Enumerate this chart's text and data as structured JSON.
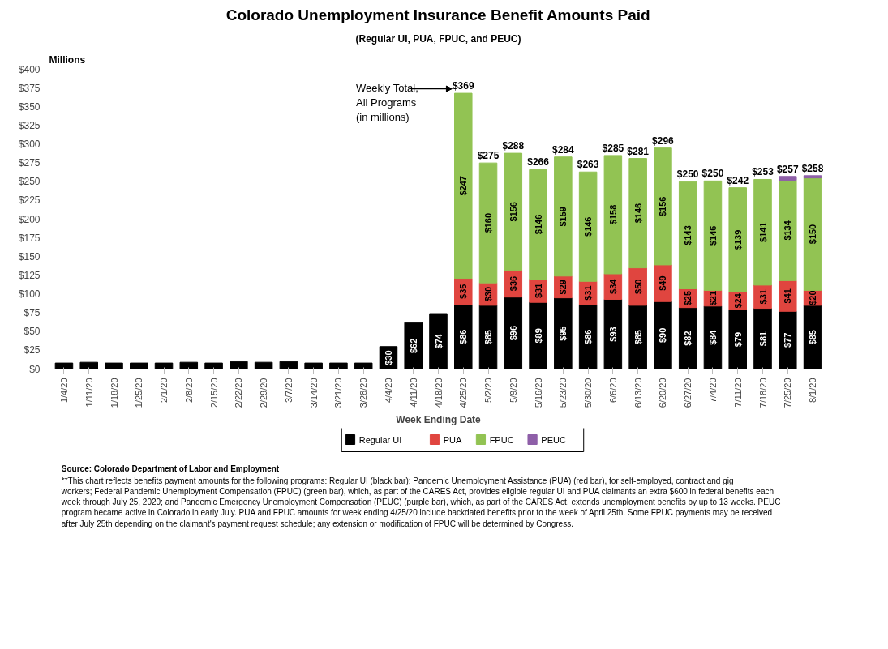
{
  "chart_data": {
    "type": "bar",
    "stacked": true,
    "title": "Colorado Unemployment Insurance Benefit Amounts Paid",
    "subtitle": "(Regular UI, PUA, FPUC, and PEUC)",
    "ylabel": "Millions",
    "xlabel": "Week Ending Date",
    "categories": [
      "1/4/20",
      "1/11/20",
      "1/18/20",
      "1/25/20",
      "2/1/20",
      "2/8/20",
      "2/15/20",
      "2/22/20",
      "2/29/20",
      "3/7/20",
      "3/14/20",
      "3/21/20",
      "3/28/20",
      "4/4/20",
      "4/11/20",
      "4/18/20",
      "4/25/20",
      "5/2/20",
      "5/9/20",
      "5/16/20",
      "5/23/20",
      "5/30/20",
      "6/6/20",
      "6/13/20",
      "6/20/20",
      "6/27/20",
      "7/4/20",
      "7/11/20",
      "7/18/20",
      "7/25/20",
      "8/1/20"
    ],
    "series": [
      {
        "name": "Regular UI",
        "color": "#000000",
        "values": [
          8,
          9,
          8,
          8,
          8,
          9,
          8,
          10,
          9,
          10,
          8,
          8,
          8,
          30,
          62,
          74,
          86,
          85,
          96,
          89,
          95,
          86,
          93,
          85,
          90,
          82,
          84,
          79,
          81,
          77,
          85
        ],
        "value_labels": [
          null,
          null,
          null,
          null,
          null,
          null,
          null,
          null,
          null,
          null,
          null,
          null,
          null,
          "$30",
          "$62",
          "$74",
          "$86",
          "$85",
          "$96",
          "$89",
          "$95",
          "$86",
          "$93",
          "$85",
          "$90",
          "$82",
          "$84",
          "$79",
          "$81",
          "$77",
          "$85"
        ]
      },
      {
        "name": "PUA",
        "color": "#e0453f",
        "values": [
          null,
          null,
          null,
          null,
          null,
          null,
          null,
          null,
          null,
          null,
          null,
          null,
          null,
          null,
          null,
          null,
          35,
          30,
          36,
          31,
          29,
          31,
          34,
          50,
          49,
          25,
          21,
          24,
          31,
          41,
          20
        ],
        "value_labels": [
          null,
          null,
          null,
          null,
          null,
          null,
          null,
          null,
          null,
          null,
          null,
          null,
          null,
          null,
          null,
          null,
          "$35",
          "$30",
          "$36",
          "$31",
          "$29",
          "$31",
          "$34",
          "$50",
          "$49",
          "$25",
          "$21",
          "$24",
          "$31",
          "$41",
          "$20"
        ]
      },
      {
        "name": "FPUC",
        "color": "#92c353",
        "values": [
          null,
          null,
          null,
          null,
          null,
          null,
          null,
          null,
          null,
          null,
          null,
          null,
          null,
          null,
          null,
          null,
          247,
          160,
          156,
          146,
          159,
          146,
          158,
          146,
          156,
          143,
          146,
          139,
          141,
          134,
          150
        ],
        "value_labels": [
          null,
          null,
          null,
          null,
          null,
          null,
          null,
          null,
          null,
          null,
          null,
          null,
          null,
          null,
          null,
          null,
          "$247",
          "$160",
          "$156",
          "$146",
          "$159",
          "$146",
          "$158",
          "$146",
          "$156",
          "$143",
          "$146",
          "$139",
          "$141",
          "$134",
          "$150"
        ]
      },
      {
        "name": "PEUC",
        "color": "#8e5fa8",
        "values": [
          null,
          null,
          null,
          null,
          null,
          null,
          null,
          null,
          null,
          null,
          null,
          null,
          null,
          null,
          null,
          null,
          null,
          null,
          null,
          null,
          null,
          null,
          null,
          null,
          null,
          null,
          null,
          null,
          null,
          5,
          3
        ]
      }
    ],
    "totals": [
      null,
      null,
      null,
      null,
      null,
      null,
      null,
      null,
      null,
      null,
      null,
      null,
      null,
      null,
      null,
      null,
      "$369",
      "$275",
      "$288",
      "$266",
      "$284",
      "$263",
      "$285",
      "$281",
      "$296",
      "$250",
      "$250",
      "$242",
      "$253",
      "$257",
      "$258"
    ],
    "ylim": [
      0,
      400
    ],
    "yticks": [
      {
        "value": 0,
        "label": "$0"
      },
      {
        "value": 25,
        "label": "$25"
      },
      {
        "value": 50,
        "label": "$50"
      },
      {
        "value": 75,
        "label": "$75"
      },
      {
        "value": 100,
        "label": "$100"
      },
      {
        "value": 125,
        "label": "$125"
      },
      {
        "value": 150,
        "label": "$150"
      },
      {
        "value": 175,
        "label": "$175"
      },
      {
        "value": 200,
        "label": "$200"
      },
      {
        "value": 225,
        "label": "$225"
      },
      {
        "value": 250,
        "label": "$250"
      },
      {
        "value": 275,
        "label": "$275"
      },
      {
        "value": 300,
        "label": "$300"
      },
      {
        "value": 325,
        "label": "$325"
      },
      {
        "value": 350,
        "label": "$350"
      },
      {
        "value": 375,
        "label": "$375"
      },
      {
        "value": 400,
        "label": "$400"
      }
    ],
    "grid": false,
    "legend": "bottom",
    "annotations": [
      "Weekly Total, All Programs (in millions)",
      "Source: Colorado Department of Labor and Employment",
      "**This chart reflects benefits payment amounts for the following programs: Regular UI (black bar); Pandemic Unemployment Assistance (PUA) (red bar), for self-employed, contract and gig workers; Federal Pandemic Unemployment Compensation (FPUC) (green bar), which, as part of the CARES Act, provides eligible regular UI and PUA claimants an extra $600 in federal benefits each week through July 25, 2020; and Pandemic Emergency Unemployment Compensation (PEUC) (purple bar), which, as part of the CARES Act, extends unemployment benefits by up to 13 weeks. PEUC program became active in Colorado in early July. PUA and FPUC amounts for week ending 4/25/20 include backdated benefits prior to the week of April 25th. Some FPUC payments may be received after July 25th depending on the claimant's payment request schedule; any extension or modification of FPUC will be determined by Congress."
    ]
  }
}
